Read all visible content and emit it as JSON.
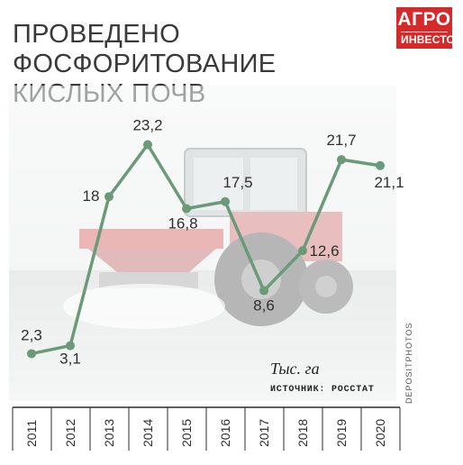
{
  "header": {
    "title_line1": "ПРОВЕДЕНО ФОСФОРИТОВАНИЕ",
    "title_line2": "КИСЛЫХ ПОЧВ"
  },
  "logo": {
    "line1": "АГРО",
    "line2": "ИНВЕСТОР"
  },
  "photo_credit": "DEPOSITPHOTOS",
  "colors": {
    "line": "#6a9a78",
    "logo_bg": "#d62a2a",
    "axis": "#2b2b2b",
    "background_tint": "#e6ece8"
  },
  "chart_data": {
    "type": "line",
    "title": "ПРОВЕДЕНО ФОСФОРИТОВАНИЕ КИСЛЫХ ПОЧВ",
    "unit": "Тыс. га",
    "source": "ИСТОЧНИК: РОССТАТ",
    "categories": [
      "2011",
      "2012",
      "2013",
      "2014",
      "2015",
      "2016",
      "2017",
      "2018",
      "2019",
      "2020"
    ],
    "values": [
      2.3,
      3.1,
      18,
      23.2,
      16.8,
      17.5,
      8.6,
      12.6,
      21.7,
      21.1
    ],
    "data_labels": [
      "2,3",
      "3,1",
      "18",
      "23,2",
      "16,8",
      "17,5",
      "8,6",
      "12,6",
      "21,7",
      "21,1"
    ],
    "ylim": [
      0,
      25
    ],
    "grid": false,
    "legend": "none"
  }
}
